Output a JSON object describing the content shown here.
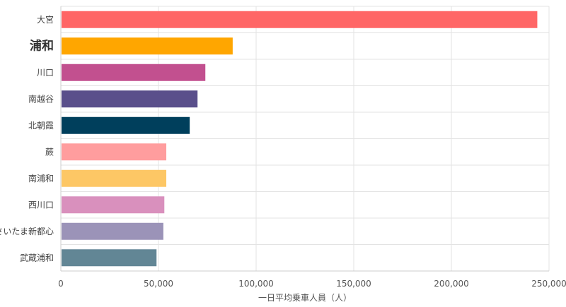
{
  "chart_data": {
    "type": "bar",
    "orientation": "horizontal",
    "categories": [
      "大宮",
      "浦和",
      "川口",
      "南越谷",
      "北朝霞",
      "蕨",
      "南浦和",
      "西川口",
      "さいたま新都心",
      "武蔵浦和"
    ],
    "values": [
      244000,
      88000,
      74000,
      70000,
      66000,
      54000,
      54000,
      53000,
      52500,
      49000
    ],
    "colors": [
      "#ff6666",
      "#ffa600",
      "#c2508f",
      "#5a4f8b",
      "#003f5c",
      "#ff9d9e",
      "#fdc765",
      "#d990bd",
      "#9b93b8",
      "#628695"
    ],
    "emphasized_category": "浦和",
    "xlabel": "一日平均乗車人員（人）",
    "xlim": [
      0,
      250000
    ],
    "x_ticks": [
      0,
      50000,
      100000,
      150000,
      200000,
      250000
    ],
    "x_tick_labels": [
      "0",
      "50,000",
      "100,000",
      "150,000",
      "200,000",
      "250,000"
    ],
    "grid": true,
    "gridline_color": "#e3e3e3",
    "axis_line_color": "#cccccc"
  }
}
